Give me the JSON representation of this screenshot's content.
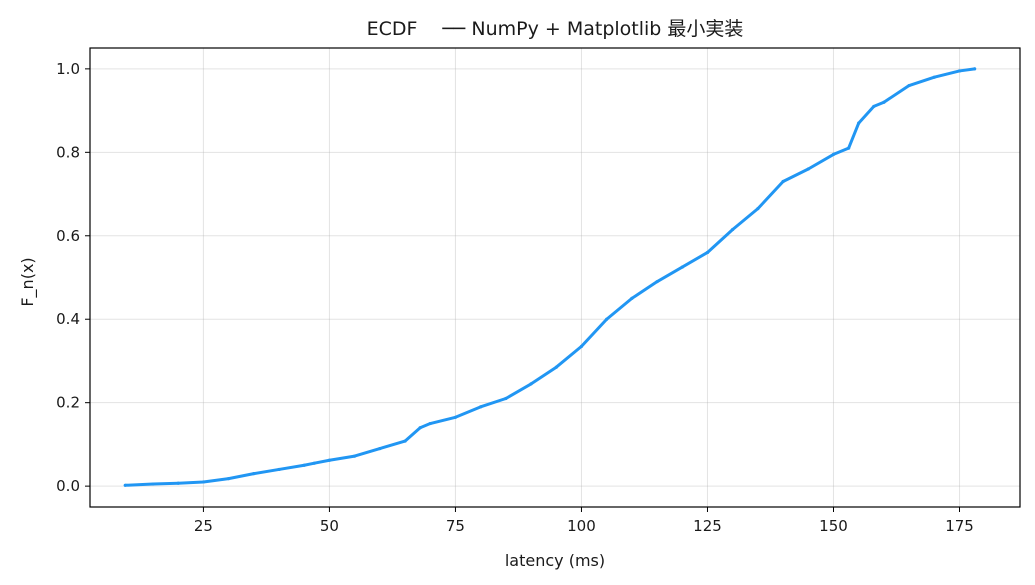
{
  "chart_data": {
    "type": "line",
    "title": "ECDF 　── NumPy + Matplotlib 最小実装",
    "xlabel": "latency (ms)",
    "ylabel": "F_n(x)",
    "xlim": [
      2.5,
      187
    ],
    "ylim": [
      -0.05,
      1.05
    ],
    "xticks": [
      25,
      50,
      75,
      100,
      125,
      150,
      175
    ],
    "yticks": [
      0.0,
      0.2,
      0.4,
      0.6,
      0.8,
      1.0
    ],
    "xtick_labels": [
      "25",
      "50",
      "75",
      "100",
      "125",
      "150",
      "175"
    ],
    "ytick_labels": [
      "0.0",
      "0.2",
      "0.4",
      "0.6",
      "0.8",
      "1.0"
    ],
    "grid": true,
    "line_color": "#2196f3",
    "series": [
      {
        "x": [
          9.5,
          15,
          20,
          25,
          30,
          35,
          40,
          45,
          47,
          50,
          55,
          60,
          65,
          68,
          70,
          75,
          80,
          85,
          90,
          95,
          100,
          105,
          110,
          115,
          120,
          125,
          130,
          135,
          140,
          145,
          150,
          153,
          155,
          158,
          160,
          165,
          170,
          175,
          178
        ],
        "y": [
          0.002,
          0.005,
          0.007,
          0.01,
          0.018,
          0.03,
          0.04,
          0.05,
          0.055,
          0.062,
          0.072,
          0.09,
          0.108,
          0.14,
          0.15,
          0.165,
          0.19,
          0.21,
          0.245,
          0.285,
          0.335,
          0.4,
          0.45,
          0.49,
          0.525,
          0.56,
          0.615,
          0.665,
          0.73,
          0.76,
          0.795,
          0.81,
          0.87,
          0.91,
          0.92,
          0.96,
          0.98,
          0.995,
          1.0
        ]
      }
    ]
  }
}
